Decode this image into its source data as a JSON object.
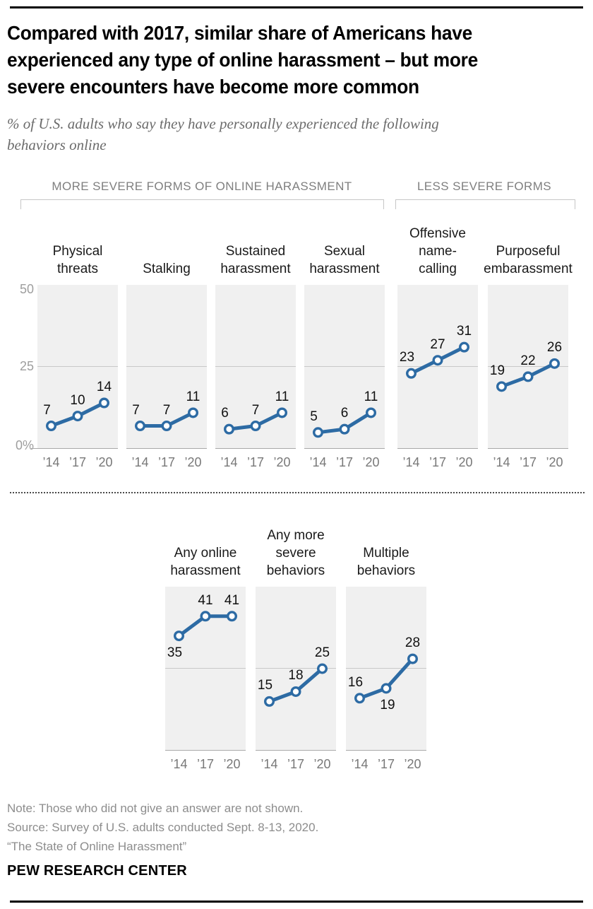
{
  "header": {
    "title": "Compared with 2017, similar share of Americans have\nexperienced any type of online harassment – but more\nsevere encounters have become more common",
    "subtitle": "% of U.S. adults who say they have personally experienced the following\nbehaviors online"
  },
  "group_labels": {
    "more_severe": "MORE SEVERE FORMS OF ONLINE HARASSMENT",
    "less_severe": "LESS SEVERE FORMS"
  },
  "y_axis": {
    "ticks": [
      "50",
      "25",
      "0%"
    ]
  },
  "chart_data": {
    "type": "line",
    "x": [
      2014,
      2017,
      2020
    ],
    "x_tick_labels": [
      "’14",
      "’17",
      "’20"
    ],
    "ylim": [
      0,
      50
    ],
    "gridline_y": 25,
    "grid": "single horizontal gridline at 25 plus baseline at 0",
    "legend": "none",
    "panels": [
      {
        "title": "Physical\nthreats",
        "group": "more_severe",
        "row": 1,
        "values": [
          7,
          10,
          14
        ]
      },
      {
        "title": "Stalking",
        "group": "more_severe",
        "row": 1,
        "values": [
          7,
          7,
          11
        ]
      },
      {
        "title": "Sustained\nharassment",
        "group": "more_severe",
        "row": 1,
        "values": [
          6,
          7,
          11
        ]
      },
      {
        "title": "Sexual\nharassment",
        "group": "more_severe",
        "row": 1,
        "values": [
          5,
          6,
          11
        ]
      },
      {
        "title": "Offensive\nname-\ncalling",
        "group": "less_severe",
        "row": 1,
        "values": [
          23,
          27,
          31
        ]
      },
      {
        "title": "Purposeful\nembarassment",
        "group": "less_severe",
        "row": 1,
        "values": [
          19,
          22,
          26
        ]
      },
      {
        "title": "Any online\nharassment",
        "row": 2,
        "values": [
          35,
          41,
          41
        ],
        "label_pos": [
          "below",
          "above",
          "above"
        ]
      },
      {
        "title": "Any more\nsevere\nbehaviors",
        "row": 2,
        "values": [
          15,
          18,
          25
        ],
        "label_pos": [
          "above",
          "above",
          "above"
        ]
      },
      {
        "title": "Multiple\nbehaviors",
        "row": 2,
        "values": [
          16,
          19,
          28
        ],
        "label_pos": [
          "above",
          "below",
          "above"
        ]
      }
    ]
  },
  "colors": {
    "line": "#2d6ba4",
    "marker_fill": "#ffffff",
    "panel_bg": "#f0f0f0",
    "gridline": "#c8c8c8",
    "baseline": "#a9a9a9"
  },
  "footer": {
    "note": "Note: Those who did not give an answer are not shown.",
    "source": "Source: Survey of U.S. adults conducted Sept. 8-13, 2020.",
    "study": "“The State of Online Harassment”",
    "brand": "PEW RESEARCH CENTER"
  }
}
